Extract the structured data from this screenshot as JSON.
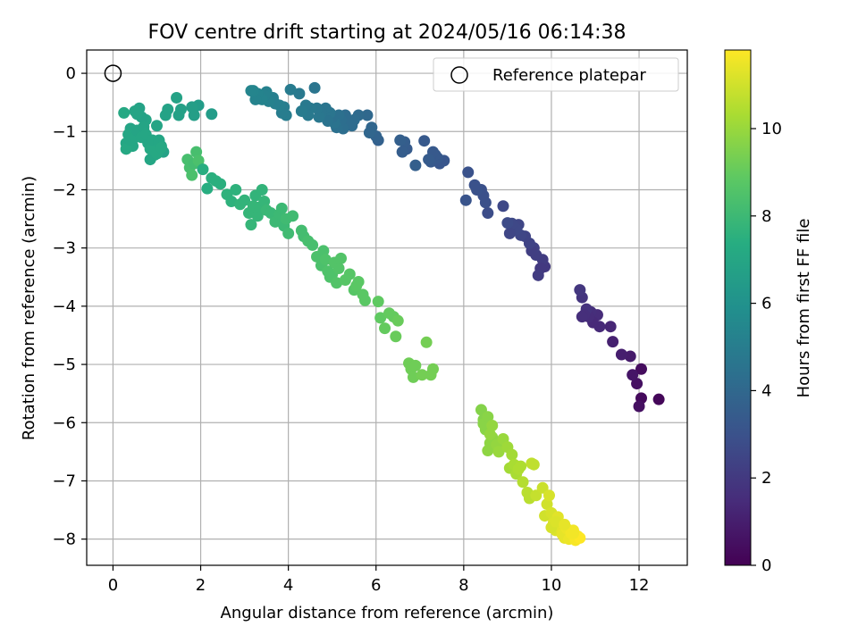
{
  "chart_data": {
    "type": "scatter",
    "title": "FOV centre drift starting at 2024/05/16 06:14:38",
    "xlabel": "Angular distance from reference (arcmin)",
    "ylabel": "Rotation from reference (arcmin)",
    "xlim": [
      -0.6,
      13.1
    ],
    "ylim": [
      -8.45,
      0.4
    ],
    "xticks": [
      0,
      2,
      4,
      6,
      8,
      10,
      12
    ],
    "yticks": [
      0,
      -1,
      -2,
      -3,
      -4,
      -5,
      -6,
      -7,
      -8
    ],
    "grid": true,
    "legend": {
      "placement": "top-right",
      "entries": [
        "Reference platepar"
      ]
    },
    "reference_point": {
      "x": 0,
      "y": 0
    },
    "colorbar": {
      "label": "Hours from first FF file",
      "range": [
        0,
        11.8
      ],
      "ticks": [
        0,
        2,
        4,
        6,
        8,
        10
      ],
      "colormap": "viridis"
    },
    "series": [
      {
        "x": [
          12.45,
          12.05,
          12.05,
          12.0,
          11.95,
          11.85,
          11.8,
          11.6,
          11.4,
          11.35,
          11.1,
          11.05,
          10.95,
          10.9,
          10.85,
          10.8,
          10.75,
          10.7,
          10.7,
          10.65,
          9.85,
          9.8,
          9.75,
          9.7,
          9.65,
          9.6,
          9.55,
          9.5,
          9.4,
          9.3,
          9.25,
          9.2,
          9.1,
          9.05,
          9.0,
          8.9,
          8.55,
          8.5,
          8.45,
          8.4,
          8.3,
          8.25,
          8.1,
          8.05,
          7.55,
          7.45,
          7.4,
          7.35,
          7.3,
          7.25,
          7.2,
          7.1,
          6.9,
          6.7,
          6.65,
          6.6,
          6.55,
          6.05,
          6.0,
          5.9,
          5.85,
          5.8,
          5.6,
          5.5,
          5.45,
          5.35,
          5.3,
          5.25,
          5.2,
          5.15,
          5.1,
          5.05,
          5.0,
          4.95,
          4.9,
          4.85,
          4.75,
          4.7,
          4.65,
          4.6,
          4.5,
          4.45,
          4.4,
          4.3,
          4.25,
          4.05,
          3.95,
          3.9,
          3.85,
          3.8,
          3.7,
          3.65,
          3.55,
          3.5,
          3.45,
          3.4,
          3.3,
          3.25,
          3.2,
          3.15
        ],
        "y": [
          -5.6,
          -5.58,
          -5.08,
          -5.72,
          -5.33,
          -5.18,
          -4.86,
          -4.83,
          -4.61,
          -4.35,
          -4.35,
          -4.15,
          -4.28,
          -4.1,
          -4.18,
          -4.05,
          -4.15,
          -3.85,
          -4.18,
          -3.72,
          -3.32,
          -3.2,
          -3.35,
          -3.47,
          -3.12,
          -3.0,
          -3.05,
          -2.92,
          -2.8,
          -2.78,
          -2.6,
          -2.68,
          -2.58,
          -2.75,
          -2.57,
          -2.28,
          -2.4,
          -2.22,
          -2.1,
          -2.0,
          -2.0,
          -1.92,
          -1.7,
          -2.18,
          -1.5,
          -1.55,
          -1.45,
          -1.4,
          -1.35,
          -1.52,
          -1.48,
          -1.16,
          -1.58,
          -1.3,
          -1.18,
          -1.35,
          -1.15,
          -1.15,
          -1.08,
          -0.93,
          -1.02,
          -0.72,
          -0.72,
          -0.8,
          -0.9,
          -0.82,
          -0.72,
          -0.95,
          -0.8,
          -0.72,
          -0.93,
          -0.85,
          -0.75,
          -0.68,
          -0.82,
          -0.6,
          -0.68,
          -0.75,
          -0.6,
          -0.25,
          -0.6,
          -0.72,
          -0.55,
          -0.65,
          -0.35,
          -0.28,
          -0.72,
          -0.58,
          -0.68,
          -0.55,
          -0.52,
          -0.42,
          -0.48,
          -0.32,
          -0.38,
          -0.45,
          -0.35,
          -0.45,
          -0.3,
          -0.3
        ],
        "z": [
          0.2,
          0.3,
          0.4,
          0.5,
          0.5,
          0.7,
          0.9,
          1.0,
          1.1,
          1.3,
          1.4,
          1.5,
          1.4,
          1.6,
          1.5,
          1.7,
          1.6,
          1.8,
          1.6,
          1.9,
          2.0,
          2.1,
          2.0,
          2.1,
          2.2,
          2.3,
          2.2,
          2.4,
          2.4,
          2.5,
          2.5,
          2.6,
          2.6,
          2.5,
          2.7,
          2.6,
          2.8,
          2.9,
          2.9,
          2.9,
          3.0,
          3.0,
          3.0,
          3.1,
          3.2,
          3.2,
          3.3,
          3.3,
          3.3,
          3.3,
          3.4,
          3.3,
          3.6,
          3.4,
          3.5,
          3.5,
          3.6,
          3.7,
          3.8,
          3.9,
          3.9,
          4.0,
          4.1,
          4.2,
          4.2,
          4.2,
          4.2,
          4.3,
          4.3,
          4.4,
          4.4,
          4.5,
          4.4,
          4.6,
          4.5,
          4.6,
          4.6,
          4.7,
          4.7,
          4.6,
          4.8,
          4.8,
          4.8,
          4.9,
          4.8,
          4.9,
          5.0,
          5.0,
          5.0,
          5.1,
          5.1,
          5.1,
          5.2,
          5.2,
          5.2,
          5.3,
          5.3,
          5.3,
          5.4,
          5.4
        ]
      },
      {
        "x": [
          2.25,
          1.95,
          1.85,
          1.8,
          1.55,
          1.5,
          1.45,
          1.25,
          1.2,
          1.15,
          1.1,
          1.05,
          1.0,
          0.95,
          0.9,
          0.85,
          0.8,
          0.75,
          0.7,
          0.65,
          0.6,
          0.55,
          0.5,
          0.45,
          0.4,
          0.35,
          0.3,
          0.25,
          0.3,
          0.4,
          0.5,
          0.55,
          0.65,
          0.7,
          0.75,
          0.85,
          0.9,
          1.0,
          1.05,
          1.1,
          1.7,
          1.75,
          1.8,
          1.85,
          1.9,
          1.95,
          2.05,
          2.15,
          2.25,
          2.35,
          2.45,
          2.6,
          2.7,
          2.8,
          2.9,
          3.0,
          3.1,
          3.15,
          3.2,
          3.25,
          3.3,
          3.35,
          3.4,
          3.45,
          3.5,
          3.6,
          3.7,
          3.8,
          3.85,
          3.9,
          3.95,
          4.0,
          4.1,
          4.3,
          4.35,
          4.45,
          4.55,
          4.65,
          4.75,
          4.8,
          4.85,
          4.9,
          4.95,
          5.0,
          5.05,
          5.1,
          5.15,
          5.2,
          5.3,
          5.4,
          5.5,
          5.55,
          5.6,
          5.7,
          5.75,
          6.05,
          6.1,
          6.2,
          6.3,
          6.4,
          6.45,
          6.5,
          6.75,
          6.8,
          6.85,
          6.9,
          7.05,
          7.15,
          7.25,
          7.3
        ],
        "y": [
          -0.7,
          -0.55,
          -0.72,
          -0.58,
          -0.62,
          -0.72,
          -0.42,
          -0.62,
          -0.72,
          -1.35,
          -1.25,
          -1.15,
          -0.9,
          -1.4,
          -1.3,
          -1.48,
          -1.2,
          -0.8,
          -0.98,
          -0.75,
          -0.6,
          -0.7,
          -0.65,
          -1.25,
          -0.95,
          -1.05,
          -1.2,
          -0.68,
          -1.3,
          -1.15,
          -1.1,
          -0.98,
          -1.1,
          -0.92,
          -1.05,
          -1.3,
          -1.15,
          -1.38,
          -1.18,
          -1.28,
          -1.48,
          -1.62,
          -1.75,
          -1.55,
          -1.35,
          -1.5,
          -1.65,
          -1.98,
          -1.8,
          -1.85,
          -1.9,
          -2.08,
          -2.2,
          -2.0,
          -2.25,
          -2.18,
          -2.4,
          -2.6,
          -2.28,
          -2.1,
          -2.45,
          -2.3,
          -2.0,
          -2.2,
          -2.35,
          -2.4,
          -2.55,
          -2.42,
          -2.32,
          -2.62,
          -2.5,
          -2.75,
          -2.45,
          -2.7,
          -2.8,
          -2.88,
          -2.95,
          -3.15,
          -3.3,
          -3.05,
          -3.2,
          -3.4,
          -3.5,
          -3.45,
          -3.25,
          -3.6,
          -3.35,
          -3.18,
          -3.55,
          -3.45,
          -3.72,
          -3.65,
          -3.58,
          -3.8,
          -3.9,
          -3.92,
          -4.2,
          -4.38,
          -4.12,
          -4.18,
          -4.52,
          -4.25,
          -4.98,
          -5.08,
          -5.22,
          -5.02,
          -5.18,
          -4.62,
          -5.18,
          -5.08
        ],
        "z": [
          6.5,
          6.5,
          6.6,
          6.6,
          6.7,
          6.7,
          6.8,
          6.8,
          6.8,
          6.8,
          6.9,
          6.9,
          6.9,
          6.9,
          7.0,
          7.0,
          7.0,
          6.9,
          6.9,
          6.8,
          6.8,
          6.9,
          6.9,
          7.0,
          6.9,
          7.0,
          7.0,
          7.1,
          7.1,
          7.0,
          7.0,
          6.9,
          7.0,
          6.9,
          7.0,
          7.1,
          7.0,
          7.1,
          7.0,
          7.1,
          8.3,
          8.3,
          8.4,
          8.2,
          8.3,
          8.4,
          7.4,
          7.4,
          7.5,
          7.5,
          7.5,
          7.6,
          7.6,
          7.6,
          7.7,
          7.7,
          7.8,
          7.8,
          7.8,
          7.7,
          7.8,
          7.8,
          7.7,
          7.8,
          7.9,
          7.9,
          8.0,
          8.0,
          8.0,
          8.0,
          8.1,
          8.1,
          8.1,
          8.2,
          8.2,
          8.3,
          8.3,
          8.4,
          8.4,
          8.4,
          8.5,
          8.5,
          8.5,
          8.5,
          8.6,
          8.6,
          8.6,
          8.6,
          8.7,
          8.7,
          8.7,
          8.8,
          8.8,
          8.8,
          8.8,
          8.9,
          8.9,
          9.0,
          9.0,
          9.0,
          9.1,
          9.1,
          9.2,
          9.2,
          9.2,
          9.2,
          9.3,
          9.3,
          9.3,
          9.3
        ]
      },
      {
        "x": [
          8.4,
          8.45,
          8.5,
          8.45,
          8.55,
          8.6,
          8.55,
          8.65,
          8.7,
          8.6,
          8.65,
          8.75,
          8.8,
          8.9,
          9.0,
          9.05,
          9.1,
          9.15,
          9.2,
          9.25,
          9.3,
          9.35,
          9.45,
          9.5,
          9.6,
          9.55,
          9.65,
          9.8,
          9.85,
          9.9,
          9.95,
          10.0,
          10.05,
          10.1,
          10.15,
          10.2,
          10.25,
          10.3,
          10.35,
          10.4,
          10.45,
          10.5,
          10.55,
          10.6,
          10.65,
          10.0,
          10.1,
          10.3,
          10.5
        ],
        "y": [
          -5.78,
          -5.95,
          -6.12,
          -6.02,
          -5.9,
          -6.35,
          -6.48,
          -6.25,
          -6.4,
          -6.2,
          -6.05,
          -6.38,
          -6.5,
          -6.28,
          -6.42,
          -6.78,
          -6.55,
          -6.72,
          -6.88,
          -6.8,
          -6.75,
          -7.02,
          -7.2,
          -7.3,
          -6.72,
          -6.7,
          -7.25,
          -7.12,
          -7.6,
          -7.4,
          -7.25,
          -7.55,
          -7.72,
          -7.85,
          -7.62,
          -7.8,
          -7.92,
          -7.98,
          -7.82,
          -8.0,
          -7.9,
          -7.85,
          -8.02,
          -7.95,
          -7.98,
          -7.8,
          -7.7,
          -7.75,
          -7.9
        ],
        "z": [
          9.6,
          9.6,
          9.7,
          9.7,
          9.7,
          9.8,
          9.8,
          9.8,
          9.8,
          9.9,
          9.9,
          9.9,
          10.0,
          10.0,
          10.1,
          10.2,
          10.2,
          10.3,
          10.3,
          10.4,
          10.4,
          10.5,
          10.6,
          10.6,
          10.7,
          10.7,
          10.8,
          10.9,
          11.0,
          11.0,
          11.1,
          11.1,
          11.2,
          11.2,
          11.3,
          11.3,
          11.4,
          11.4,
          11.5,
          11.5,
          11.6,
          11.6,
          11.7,
          11.7,
          11.8,
          11.1,
          11.2,
          11.4,
          11.6
        ]
      }
    ]
  }
}
